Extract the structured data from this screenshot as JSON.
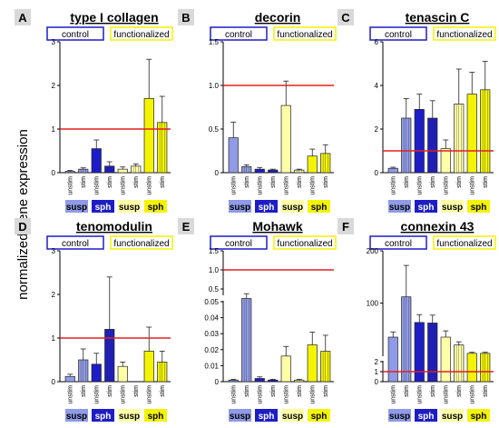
{
  "figure": {
    "ylabel": "normalized gene expression",
    "legend_control": "control",
    "legend_functionalized": "functionalized",
    "group_labels": [
      "susp",
      "sph",
      "susp",
      "sph"
    ],
    "bar_labels": [
      "unstim",
      "stim",
      "unstim",
      "stim",
      "unstim",
      "stim",
      "unstim",
      "stim"
    ]
  },
  "colors": {
    "control_light": "#8f9be6",
    "control_dark": "#1d1dc6",
    "functional_light": "#ffffa8",
    "functional_dark": "#f4f400",
    "reference_line": "#e02020",
    "star_black": "#000000",
    "star_red": "#ee2020",
    "panel_letter_bg": "#d9d9d9"
  },
  "chart_data": [
    {
      "panel": "A",
      "title": "type I collagen",
      "type": "bar",
      "categories": [
        "unstim",
        "stim",
        "unstim",
        "stim",
        "unstim",
        "stim",
        "unstim",
        "stim"
      ],
      "values": [
        0.03,
        0.08,
        0.55,
        0.15,
        0.08,
        0.15,
        1.7,
        1.15
      ],
      "errors": [
        0.02,
        0.03,
        0.2,
        0.1,
        0.05,
        0.05,
        0.9,
        0.6
      ],
      "ylim": [
        0,
        3
      ],
      "yticks": [
        "0",
        "1",
        "2",
        "3"
      ],
      "reference_line": 1
    },
    {
      "panel": "B",
      "title": "decorin",
      "type": "bar",
      "categories": [
        "unstim",
        "stim",
        "unstim",
        "stim",
        "unstim",
        "stim",
        "unstim",
        "stim"
      ],
      "values": [
        0.4,
        0.07,
        0.04,
        0.03,
        0.77,
        0.03,
        0.19,
        0.22
      ],
      "errors": [
        0.18,
        0.02,
        0.02,
        0.01,
        0.28,
        0.01,
        0.08,
        0.1
      ],
      "ylim": [
        0,
        1.5
      ],
      "yticks": [
        "0",
        "0.5",
        "1.0",
        "1.5"
      ],
      "reference_line": 1
    },
    {
      "panel": "C",
      "title": "tenascin C",
      "type": "bar",
      "categories": [
        "unstim",
        "stim",
        "unstim",
        "stim",
        "unstim",
        "stim",
        "unstim",
        "stim"
      ],
      "values": [
        0.2,
        2.5,
        2.9,
        2.5,
        1.1,
        3.15,
        3.6,
        3.8
      ],
      "errors": [
        0.05,
        0.9,
        0.7,
        0.8,
        0.4,
        1.6,
        1.0,
        1.3
      ],
      "ylim": [
        0,
        6
      ],
      "yticks": [
        "0",
        "2",
        "4",
        "6"
      ],
      "reference_line": 1
    },
    {
      "panel": "D",
      "title": "tenomodulin",
      "type": "bar",
      "categories": [
        "unstim",
        "stim",
        "unstim",
        "stim",
        "unstim",
        "stim",
        "unstim",
        "stim"
      ],
      "values": [
        0.12,
        0.5,
        0.4,
        1.2,
        0.35,
        0.0,
        0.7,
        0.45
      ],
      "errors": [
        0.05,
        0.25,
        0.25,
        1.2,
        0.1,
        0.0,
        0.55,
        0.25
      ],
      "ylim": [
        0,
        3
      ],
      "yticks": [
        "0",
        "1",
        "2",
        "3"
      ],
      "reference_line": 1
    },
    {
      "panel": "E",
      "title": "Mohawk",
      "type": "bar",
      "categories": [
        "unstim",
        "stim",
        "unstim",
        "stim",
        "unstim",
        "stim",
        "unstim",
        "stim"
      ],
      "values": [
        0.001,
        0.052,
        0.002,
        0.001,
        0.016,
        0.001,
        0.023,
        0.019
      ],
      "errors": [
        0.0005,
        0.003,
        0.001,
        0.0005,
        0.006,
        0.0005,
        0.008,
        0.01
      ],
      "ylim": [
        0,
        0.05
      ],
      "yticks": [
        "0",
        "0.01",
        "0.02",
        "0.03",
        "0.04",
        "0.05"
      ],
      "upper_yticks": [
        "0.5",
        "1.0",
        "1.5"
      ],
      "reference_line": 1
    },
    {
      "panel": "F",
      "title": "connexin 43",
      "type": "bar",
      "categories": [
        "unstim",
        "stim",
        "unstim",
        "stim",
        "unstim",
        "stim",
        "unstim",
        "stim"
      ],
      "values": [
        35,
        112,
        63,
        62,
        35,
        20,
        4,
        4
      ],
      "errors": [
        10,
        60,
        15,
        15,
        12,
        6,
        2,
        2
      ],
      "ylim": [
        0,
        200
      ],
      "yticks": [
        "0",
        "1",
        "2",
        "100",
        "200"
      ],
      "reference_line": 1
    }
  ]
}
